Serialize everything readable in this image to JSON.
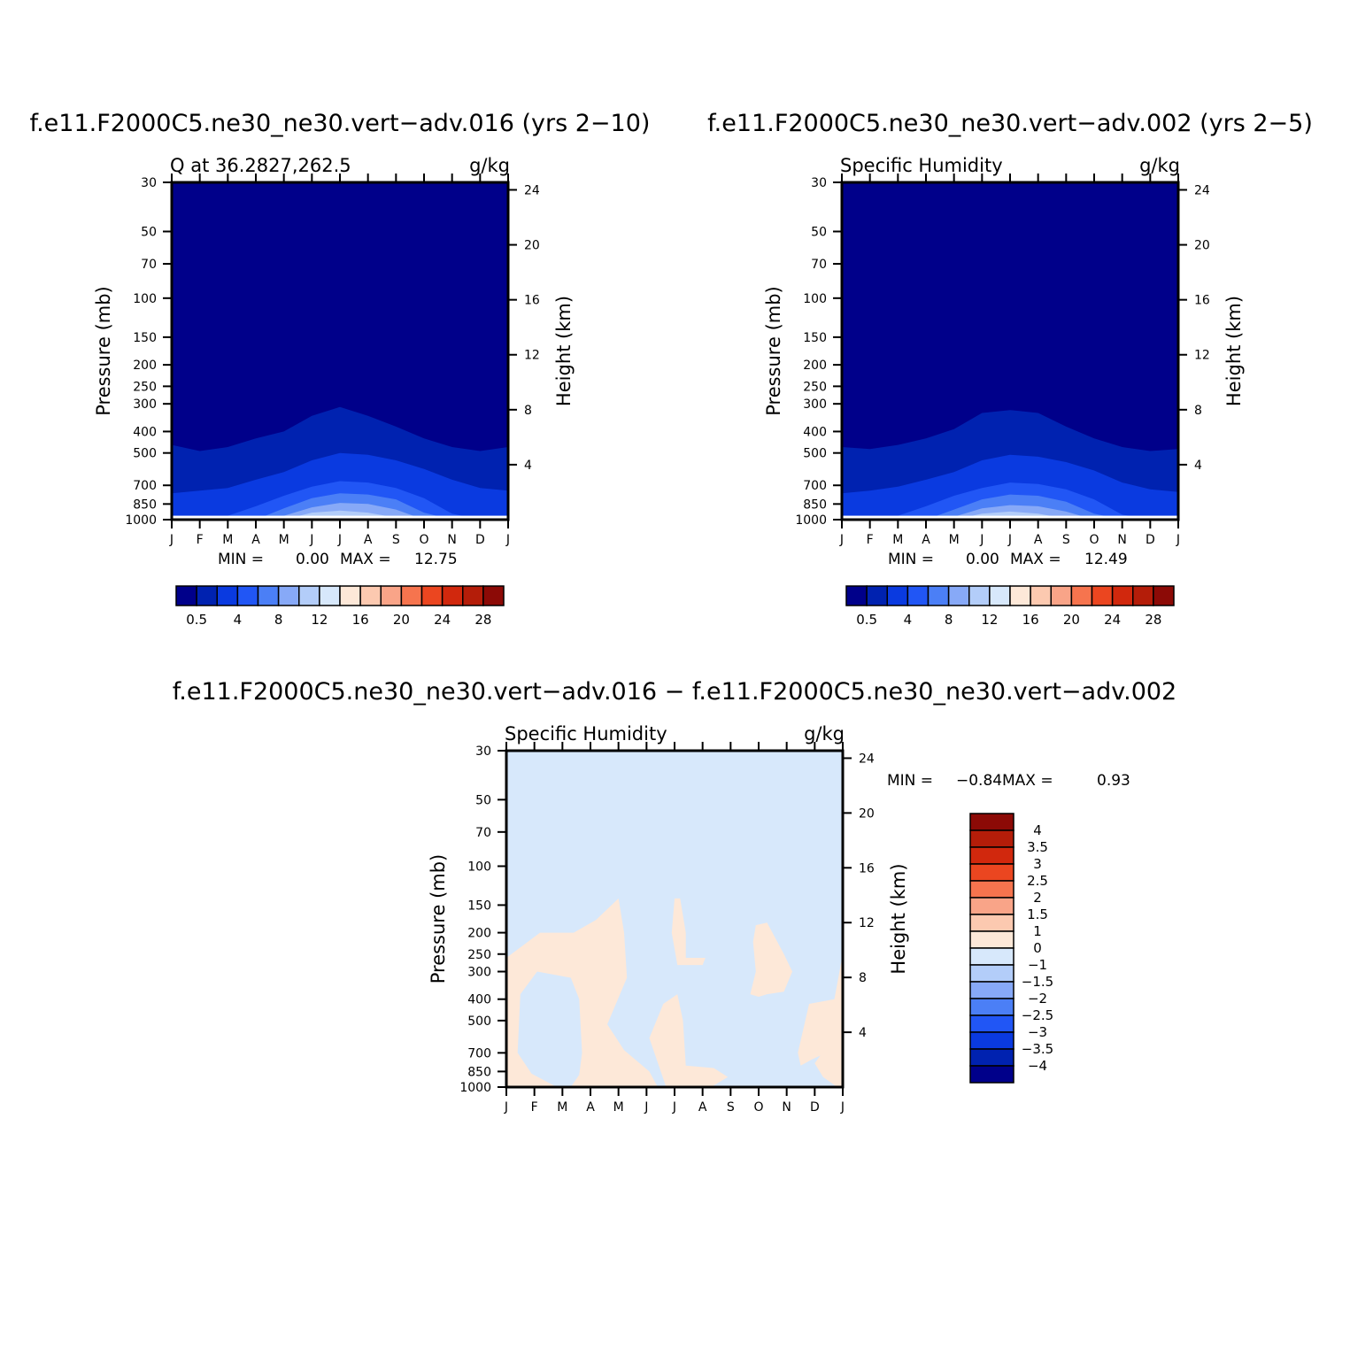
{
  "chart_data": [
    {
      "type": "heatmap",
      "panel": "top-left",
      "title": "f.e11.F2000C5.ne30_ne30.vert-adv.016 (yrs 2-10)",
      "left_label": "Q at 36.2827,262.5",
      "units": "g/kg",
      "ylabel": "Pressure (mb)",
      "ylabel_right": "Height (km)",
      "months": [
        "J",
        "F",
        "M",
        "A",
        "M",
        "J",
        "J",
        "A",
        "S",
        "O",
        "N",
        "D",
        "J"
      ],
      "pressure_ticks": [
        "30",
        "50",
        "70",
        "100",
        "150",
        "200",
        "250",
        "300",
        "400",
        "500",
        "700",
        "850",
        "1000"
      ],
      "height_ticks": [
        "24",
        "20",
        "16",
        "12",
        "8",
        "4"
      ],
      "stats": {
        "min_label": "MIN =",
        "min": "0.00",
        "max_label": "MAX =",
        "max": "12.75"
      },
      "colorbar_labels": [
        "0.5",
        "4",
        "8",
        "12",
        "16",
        "20",
        "24",
        "28"
      ],
      "colorbar_colors": [
        "#00008a",
        "#0022b0",
        "#0a3ae0",
        "#2156f5",
        "#4b7ff6",
        "#87a9f7",
        "#b3cdf9",
        "#d7e8fb",
        "#fde8d8",
        "#fcc9b0",
        "#f9a488",
        "#f6744e",
        "#eb4620",
        "#d1280d",
        "#b41d09",
        "#8c0a06"
      ],
      "field_levels": [
        {
          "level": 0,
          "color": "#00008a",
          "upper_pressure": [
            1000,
            1000,
            1000,
            1000,
            1000,
            1000,
            1000,
            1000,
            1000,
            1000,
            1000,
            1000,
            1000
          ]
        },
        {
          "level": 0.5,
          "color": "#0022b0",
          "upper_pressure": [
            460,
            490,
            470,
            430,
            400,
            340,
            310,
            340,
            380,
            430,
            470,
            490,
            470
          ]
        },
        {
          "level": 2,
          "color": "#0a3ae0",
          "upper_pressure": [
            760,
            740,
            720,
            660,
            610,
            540,
            500,
            510,
            540,
            590,
            660,
            720,
            740
          ]
        },
        {
          "level": 4,
          "color": "#2156f5",
          "upper_pressure": [
            1000,
            1000,
            960,
            870,
            780,
            710,
            670,
            680,
            720,
            800,
            940,
            1000,
            1000
          ]
        },
        {
          "level": 6,
          "color": "#4b7ff6",
          "upper_pressure": [
            1000,
            1000,
            1000,
            1000,
            890,
            800,
            760,
            770,
            810,
            930,
            1000,
            1000,
            1000
          ]
        },
        {
          "level": 8,
          "color": "#87a9f7",
          "upper_pressure": [
            1000,
            1000,
            1000,
            1000,
            960,
            880,
            840,
            850,
            900,
            1000,
            1000,
            1000,
            1000
          ]
        },
        {
          "level": 10,
          "color": "#b3cdf9",
          "upper_pressure": [
            1000,
            1000,
            1000,
            1000,
            1000,
            930,
            910,
            930,
            980,
            1000,
            1000,
            1000,
            1000
          ]
        },
        {
          "level": 12,
          "color": "#d7e8fb",
          "upper_pressure": [
            1000,
            1000,
            1000,
            1000,
            1000,
            980,
            960,
            990,
            1000,
            1000,
            1000,
            1000,
            1000
          ]
        }
      ]
    },
    {
      "type": "heatmap",
      "panel": "top-right",
      "title": "f.e11.F2000C5.ne30_ne30.vert-adv.002 (yrs 2-5)",
      "left_label": "Specific Humidity",
      "units": "g/kg",
      "ylabel": "Pressure (mb)",
      "ylabel_right": "Height (km)",
      "months": [
        "J",
        "F",
        "M",
        "A",
        "M",
        "J",
        "J",
        "A",
        "S",
        "O",
        "N",
        "D",
        "J"
      ],
      "pressure_ticks": [
        "30",
        "50",
        "70",
        "100",
        "150",
        "200",
        "250",
        "300",
        "400",
        "500",
        "700",
        "850",
        "1000"
      ],
      "height_ticks": [
        "24",
        "20",
        "16",
        "12",
        "8",
        "4"
      ],
      "stats": {
        "min_label": "MIN =",
        "min": "0.00",
        "max_label": "MAX =",
        "max": "12.49"
      },
      "colorbar_labels": [
        "0.5",
        "4",
        "8",
        "12",
        "16",
        "20",
        "24",
        "28"
      ],
      "colorbar_colors": [
        "#00008a",
        "#0022b0",
        "#0a3ae0",
        "#2156f5",
        "#4b7ff6",
        "#87a9f7",
        "#b3cdf9",
        "#d7e8fb",
        "#fde8d8",
        "#fcc9b0",
        "#f9a488",
        "#f6744e",
        "#eb4620",
        "#d1280d",
        "#b41d09",
        "#8c0a06"
      ],
      "field_levels": [
        {
          "level": 0,
          "color": "#00008a",
          "upper_pressure": [
            1000,
            1000,
            1000,
            1000,
            1000,
            1000,
            1000,
            1000,
            1000,
            1000,
            1000,
            1000,
            1000
          ]
        },
        {
          "level": 0.5,
          "color": "#0022b0",
          "upper_pressure": [
            470,
            480,
            460,
            430,
            390,
            330,
            320,
            330,
            380,
            430,
            470,
            490,
            480
          ]
        },
        {
          "level": 2,
          "color": "#0a3ae0",
          "upper_pressure": [
            760,
            740,
            710,
            660,
            610,
            540,
            510,
            520,
            550,
            600,
            680,
            730,
            750
          ]
        },
        {
          "level": 4,
          "color": "#2156f5",
          "upper_pressure": [
            1000,
            1000,
            960,
            870,
            780,
            720,
            680,
            690,
            730,
            810,
            950,
            1000,
            1000
          ]
        },
        {
          "level": 6,
          "color": "#4b7ff6",
          "upper_pressure": [
            1000,
            1000,
            1000,
            1000,
            900,
            810,
            770,
            780,
            830,
            940,
            1000,
            1000,
            1000
          ]
        },
        {
          "level": 8,
          "color": "#87a9f7",
          "upper_pressure": [
            1000,
            1000,
            1000,
            1000,
            970,
            890,
            860,
            870,
            920,
            1000,
            1000,
            1000,
            1000
          ]
        },
        {
          "level": 10,
          "color": "#b3cdf9",
          "upper_pressure": [
            1000,
            1000,
            1000,
            1000,
            1000,
            940,
            920,
            940,
            990,
            1000,
            1000,
            1000,
            1000
          ]
        },
        {
          "level": 12,
          "color": "#d7e8fb",
          "upper_pressure": [
            1000,
            1000,
            1000,
            1000,
            1000,
            990,
            970,
            1000,
            1000,
            1000,
            1000,
            1000,
            1000
          ]
        }
      ]
    },
    {
      "type": "heatmap",
      "panel": "bottom",
      "title": "f.e11.F2000C5.ne30_ne30.vert-adv.016 - f.e11.F2000C5.ne30_ne30.vert-adv.002",
      "left_label": "Specific Humidity",
      "units": "g/kg",
      "ylabel": "Pressure (mb)",
      "ylabel_right": "Height (km)",
      "months": [
        "J",
        "F",
        "M",
        "A",
        "M",
        "J",
        "J",
        "A",
        "S",
        "O",
        "N",
        "D",
        "J"
      ],
      "pressure_ticks": [
        "30",
        "50",
        "70",
        "100",
        "150",
        "200",
        "250",
        "300",
        "400",
        "500",
        "700",
        "850",
        "1000"
      ],
      "height_ticks": [
        "24",
        "20",
        "16",
        "12",
        "8",
        "4"
      ],
      "stats": {
        "min_label": "MIN =",
        "min": "-0.84",
        "max_label": "MAX =",
        "max": "0.93"
      },
      "colorbar_labels": [
        "4",
        "3.5",
        "3",
        "2.5",
        "2",
        "1.5",
        "1",
        "0",
        "-1",
        "-1.5",
        "-2",
        "-2.5",
        "-3",
        "-3.5",
        "-4"
      ],
      "colorbar_colors": [
        "#8c0a06",
        "#b41d09",
        "#d1280d",
        "#eb4620",
        "#f6744e",
        "#f9a488",
        "#fcc9b0",
        "#fde8d8",
        "#d7e8fb",
        "#b3cdf9",
        "#87a9f7",
        "#4b7ff6",
        "#2156f5",
        "#0a3ae0",
        "#0022b0",
        "#00008a"
      ],
      "background_level": {
        "range": "-1 to 0",
        "color": "#d7e8fb"
      },
      "positive_regions": [
        {
          "range": "0 to 1",
          "color": "#fde8d8",
          "polygon": [
            [
              0,
              1000
            ],
            [
              0,
              260
            ],
            [
              1.2,
              200
            ],
            [
              2.4,
              200
            ],
            [
              3.2,
              175
            ],
            [
              4,
              140
            ],
            [
              4.2,
              200
            ],
            [
              4.3,
              320
            ],
            [
              3.6,
              520
            ],
            [
              4.2,
              680
            ],
            [
              5.1,
              850
            ],
            [
              5.4,
              1000
            ],
            [
              2.3,
              1000
            ],
            [
              2.6,
              880
            ],
            [
              2.7,
              700
            ],
            [
              2.6,
              400
            ],
            [
              2.3,
              320
            ],
            [
              1.1,
              300
            ],
            [
              0.5,
              380
            ],
            [
              0.4,
              700
            ],
            [
              0.9,
              870
            ],
            [
              1.8,
              1000
            ]
          ]
        },
        {
          "range": "0 to 1",
          "color": "#fde8d8",
          "polygon": [
            [
              5.7,
              1000
            ],
            [
              5.1,
              600
            ],
            [
              5.6,
              420
            ],
            [
              6.1,
              380
            ],
            [
              6.3,
              500
            ],
            [
              6.4,
              800
            ],
            [
              7.4,
              820
            ],
            [
              7.9,
              900
            ],
            [
              7.3,
              1000
            ]
          ]
        },
        {
          "range": "0 to 1",
          "color": "#fde8d8",
          "polygon": [
            [
              6.0,
              140
            ],
            [
              6.2,
              140
            ],
            [
              6.4,
              200
            ],
            [
              6.4,
              260
            ],
            [
              7.1,
              260
            ],
            [
              7.0,
              280
            ],
            [
              6.1,
              280
            ],
            [
              5.9,
              200
            ]
          ]
        },
        {
          "range": "0 to 1",
          "color": "#fde8d8",
          "polygon": [
            [
              8.9,
              185
            ],
            [
              9.3,
              180
            ],
            [
              9.9,
              250
            ],
            [
              10.2,
              300
            ],
            [
              9.9,
              370
            ],
            [
              9.3,
              380
            ],
            [
              9.0,
              390
            ],
            [
              8.7,
              380
            ],
            [
              8.9,
              300
            ],
            [
              8.8,
              220
            ]
          ]
        },
        {
          "range": "0 to 1",
          "color": "#fde8d8",
          "polygon": [
            [
              12,
              250
            ],
            [
              11.7,
              400
            ],
            [
              10.8,
              420
            ],
            [
              10.4,
              700
            ],
            [
              10.5,
              800
            ],
            [
              10.9,
              750
            ],
            [
              11.2,
              720
            ],
            [
              11,
              780
            ],
            [
              11.3,
              900
            ],
            [
              11.8,
              1000
            ],
            [
              12,
              1000
            ]
          ]
        }
      ]
    }
  ]
}
